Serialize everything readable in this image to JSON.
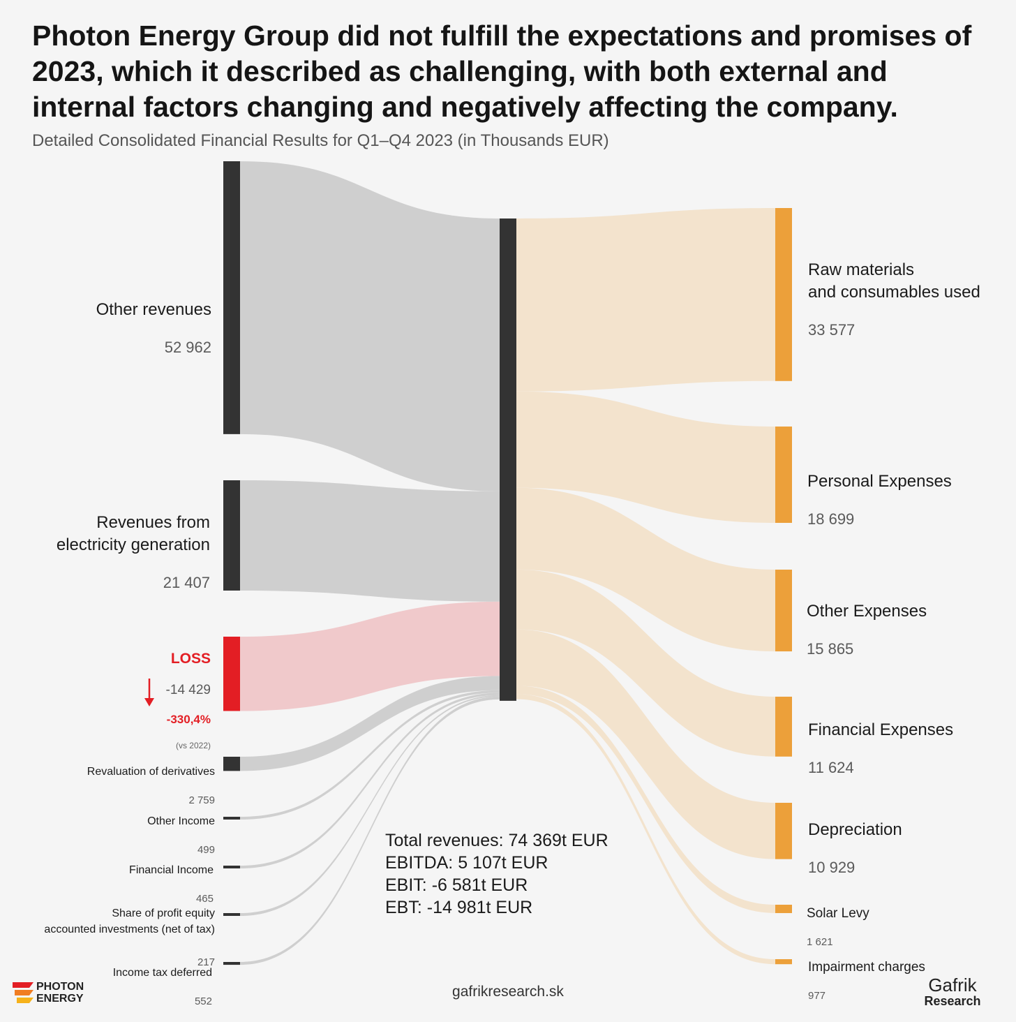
{
  "header": {
    "title": "Photon Energy Group did not fulfill the expectations and promises of 2023, which it described as challenging, with both external and internal factors changing and negatively affecting the company.",
    "subtitle": "Detailed Consolidated Financial Results for Q1–Q4 2023 (in Thousands EUR)"
  },
  "colors": {
    "node_dark": "#333333",
    "node_loss": "#e31e24",
    "node_expense": "#eca03a",
    "flow_income": "#cfcfcf",
    "flow_loss": "#f0c9cb",
    "flow_expense": "#f3e3cd"
  },
  "labels": {
    "other_revenues": {
      "name": "Other revenues",
      "value": "52 962"
    },
    "electricity": {
      "name": "Revenues from\nelectricity generation",
      "value": "21 407"
    },
    "loss": {
      "name": "LOSS",
      "value": "-14 429",
      "change": "-330,4%",
      "vs": "(vs 2022)"
    },
    "revaluation": {
      "name": "Revaluation of derivatives",
      "value": "2 759"
    },
    "other_income": {
      "name": "Other Income",
      "value": "499"
    },
    "financial_income": {
      "name": "Financial Income",
      "value": "465"
    },
    "share_profit": {
      "name": "Share of profit equity\naccounted investments (net of tax)",
      "value": "217"
    },
    "income_tax": {
      "name": "Income tax deferred",
      "value": "552"
    },
    "raw_materials": {
      "name": "Raw materials\nand consumables used",
      "value": "33 577"
    },
    "personal": {
      "name": "Personal Expenses",
      "value": "18 699"
    },
    "other_expenses": {
      "name": "Other Expenses",
      "value": "15 865"
    },
    "financial_expenses": {
      "name": "Financial Expenses",
      "value": "11 624"
    },
    "depreciation": {
      "name": "Depreciation",
      "value": "10 929"
    },
    "solar_levy": {
      "name": "Solar Levy",
      "value": "1 621"
    },
    "impairment": {
      "name": "Impairment charges",
      "value": "977"
    }
  },
  "summary": {
    "total_revenues": {
      "label": "Total revenues:",
      "value": "74 369t EUR"
    },
    "ebitda": {
      "label": "EBITDA:",
      "value": "5 107t EUR"
    },
    "ebit": {
      "label": "EBIT:",
      "value": "-6 581t EUR"
    },
    "ebt": {
      "label": "EBT:",
      "value": "-14 981t EUR"
    }
  },
  "footer": {
    "photon_logo": "PHOTON\nENERGY",
    "website": "gafrikresearch.sk",
    "gafrik_logo_1": "Gafrik",
    "gafrik_logo_2": "Research"
  },
  "chart_data": {
    "type": "sankey",
    "unit": "Thousands EUR",
    "sources": [
      {
        "name": "Other revenues",
        "value": 52962
      },
      {
        "name": "Revenues from electricity generation",
        "value": 21407
      },
      {
        "name": "LOSS",
        "value": -14429
      },
      {
        "name": "Revaluation of derivatives",
        "value": 2759
      },
      {
        "name": "Other Income",
        "value": 499
      },
      {
        "name": "Financial Income",
        "value": 465
      },
      {
        "name": "Share of profit equity accounted investments (net of tax)",
        "value": 217
      },
      {
        "name": "Income tax deferred",
        "value": 552
      }
    ],
    "targets": [
      {
        "name": "Raw materials and consumables used",
        "value": 33577
      },
      {
        "name": "Personal Expenses",
        "value": 18699
      },
      {
        "name": "Other Expenses",
        "value": 15865
      },
      {
        "name": "Financial Expenses",
        "value": 11624
      },
      {
        "name": "Depreciation",
        "value": 10929
      },
      {
        "name": "Solar Levy",
        "value": 1621
      },
      {
        "name": "Impairment charges",
        "value": 977
      }
    ]
  }
}
